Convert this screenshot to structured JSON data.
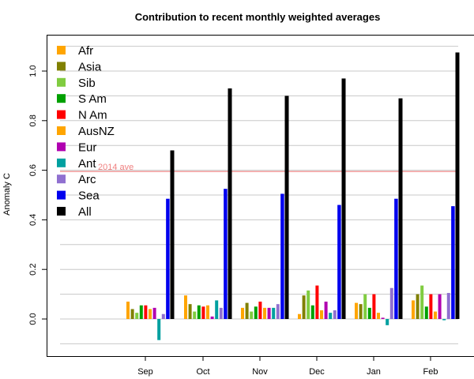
{
  "chart_data": {
    "type": "bar",
    "title": "Contribution to recent monthly weighted averages",
    "xlabel": "",
    "ylabel": "Anomaly C",
    "ylim": [
      -0.15,
      1.15
    ],
    "yticks": [
      "0.0",
      "0.2",
      "0.4",
      "0.6",
      "0.8",
      "1.0"
    ],
    "grid": true,
    "legend_position": "top-left",
    "categories": [
      "Sep",
      "Oct",
      "Nov",
      "Dec",
      "Jan",
      "Feb"
    ],
    "series": [
      {
        "name": "Afr",
        "color": "#FFA500",
        "values": [
          0.07,
          0.095,
          0.045,
          0.02,
          0.065,
          0.075
        ]
      },
      {
        "name": "Asia",
        "color": "#808000",
        "values": [
          0.04,
          0.06,
          0.065,
          0.095,
          0.06,
          0.1
        ]
      },
      {
        "name": "Sib",
        "color": "#80CC40",
        "values": [
          0.025,
          0.03,
          0.03,
          0.115,
          0.1,
          0.135
        ]
      },
      {
        "name": "S Am",
        "color": "#00A000",
        "values": [
          0.055,
          0.055,
          0.05,
          0.055,
          0.045,
          0.05
        ]
      },
      {
        "name": "N Am",
        "color": "#FF0000",
        "values": [
          0.055,
          0.05,
          0.07,
          0.135,
          0.1,
          0.1
        ]
      },
      {
        "name": "AusNZ",
        "color": "#FFA500",
        "values": [
          0.04,
          0.055,
          0.045,
          0.035,
          0.025,
          0.03
        ]
      },
      {
        "name": "Eur",
        "color": "#B000B0",
        "values": [
          0.045,
          0.01,
          0.045,
          0.07,
          0.005,
          0.1
        ]
      },
      {
        "name": "Ant",
        "color": "#00A0A0",
        "values": [
          -0.085,
          0.075,
          0.045,
          0.025,
          -0.025,
          -0.005
        ]
      },
      {
        "name": "Arc",
        "color": "#9070D0",
        "values": [
          0.02,
          0.045,
          0.06,
          0.035,
          0.125,
          0.105
        ]
      },
      {
        "name": "Sea",
        "color": "#0000EE",
        "values": [
          0.485,
          0.525,
          0.505,
          0.46,
          0.485,
          0.455
        ]
      },
      {
        "name": "All",
        "color": "#000000",
        "values": [
          0.68,
          0.93,
          0.9,
          0.97,
          0.89,
          1.075
        ]
      }
    ],
    "reference_line": {
      "label": "2014 ave",
      "value": 0.595,
      "color": "#F08080"
    }
  }
}
